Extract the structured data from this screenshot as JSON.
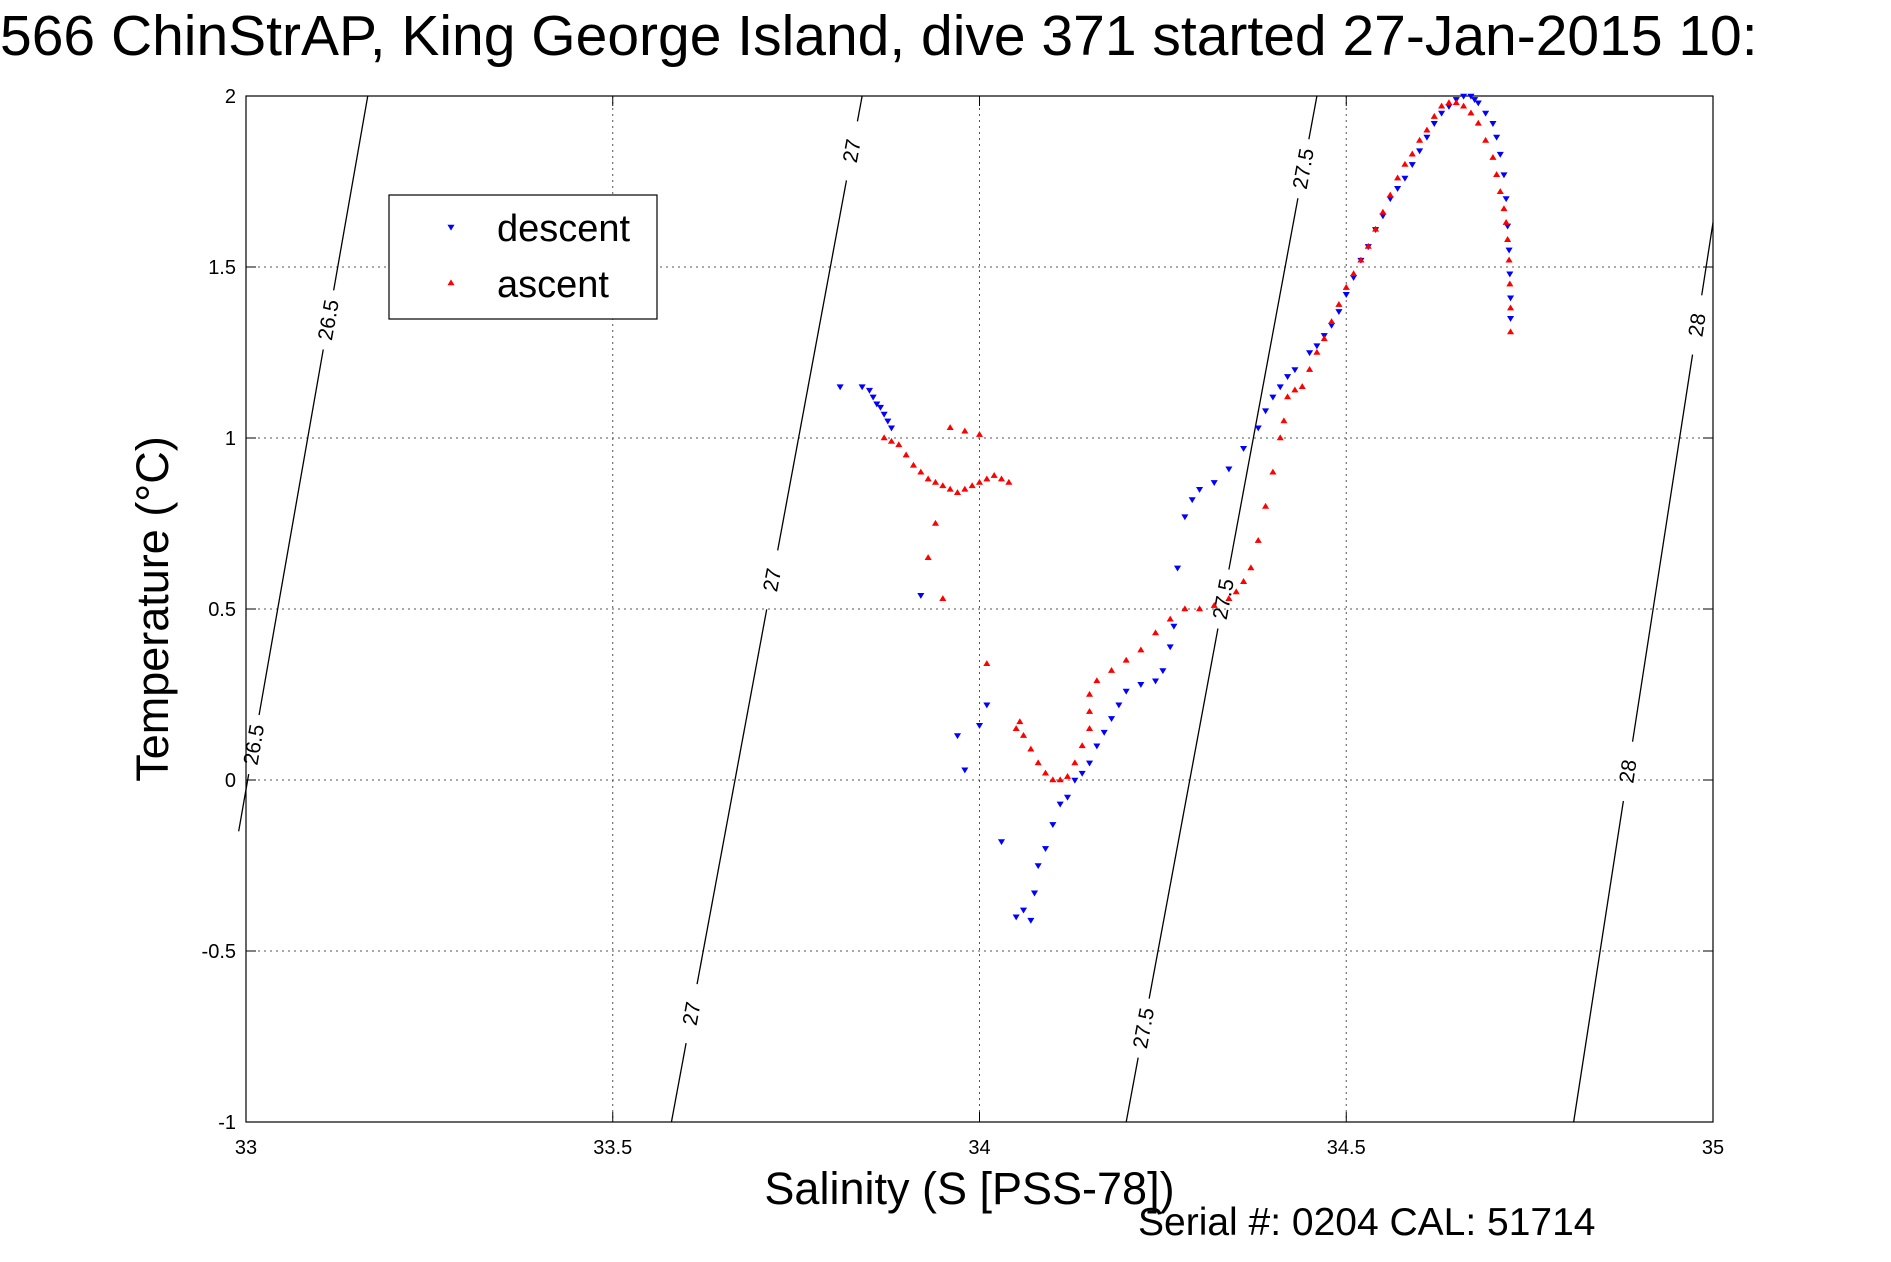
{
  "title": "566 ChinStrAP, King George Island, dive 371 started 27-Jan-2015 10:",
  "footer": "Serial #: 0204  CAL: 51714",
  "chart_data": {
    "type": "scatter",
    "xlabel": "Salinity (S [PSS-78])",
    "ylabel": "Temperature (°C)",
    "xlim": [
      33,
      35
    ],
    "ylim": [
      -1,
      2
    ],
    "xticks": [
      33,
      33.5,
      34,
      34.5,
      35
    ],
    "yticks": [
      -1,
      -0.5,
      0,
      0.5,
      1,
      1.5,
      2
    ],
    "xtick_labels": [
      "33",
      "33.5",
      "34",
      "34.5",
      "35"
    ],
    "ytick_labels": [
      "-1",
      "-0.5",
      "0",
      "0.5",
      "1",
      "1.5",
      "2"
    ],
    "grid": true,
    "legend": {
      "position": "top-left"
    },
    "isopycnals": [
      {
        "label": "26.5",
        "points": [
          [
            32.99,
            -0.15
          ],
          [
            33.166,
            2.0
          ]
        ],
        "label_at": [
          [
            33.1,
            1.35
          ],
          [
            33.02,
            0.1
          ]
        ]
      },
      {
        "label": "27",
        "points": [
          [
            33.58,
            -1.0
          ],
          [
            33.84,
            2.0
          ]
        ],
        "label_at": [
          [
            33.8,
            1.85
          ],
          [
            33.68,
            0.6
          ],
          [
            33.6,
            -0.68
          ]
        ]
      },
      {
        "label": "27.5",
        "points": [
          [
            34.2,
            -1.0
          ],
          [
            34.46,
            2.0
          ]
        ],
        "label_at": [
          [
            34.41,
            1.8
          ],
          [
            34.28,
            0.55
          ],
          [
            34.21,
            -0.72
          ]
        ]
      },
      {
        "label": "28",
        "points": [
          [
            34.81,
            -1.0
          ],
          [
            35.0,
            1.63
          ]
        ],
        "label_at": [
          [
            34.98,
            1.33
          ],
          [
            34.87,
            0.03
          ]
        ]
      }
    ],
    "series": [
      {
        "name": "descent",
        "color": "#0000ff",
        "marker": "triangle-down",
        "points": [
          [
            33.81,
            1.15
          ],
          [
            33.84,
            1.15
          ],
          [
            33.85,
            1.14
          ],
          [
            33.855,
            1.12
          ],
          [
            33.86,
            1.1
          ],
          [
            33.865,
            1.09
          ],
          [
            33.87,
            1.07
          ],
          [
            33.875,
            1.05
          ],
          [
            33.88,
            1.03
          ],
          [
            33.92,
            0.54
          ],
          [
            33.97,
            0.13
          ],
          [
            33.98,
            0.03
          ],
          [
            34.0,
            0.16
          ],
          [
            34.01,
            0.22
          ],
          [
            34.03,
            -0.18
          ],
          [
            34.05,
            -0.4
          ],
          [
            34.06,
            -0.38
          ],
          [
            34.07,
            -0.41
          ],
          [
            34.075,
            -0.33
          ],
          [
            34.08,
            -0.25
          ],
          [
            34.09,
            -0.2
          ],
          [
            34.1,
            -0.13
          ],
          [
            34.11,
            -0.07
          ],
          [
            34.12,
            -0.05
          ],
          [
            34.13,
            0.0
          ],
          [
            34.14,
            0.02
          ],
          [
            34.15,
            0.05
          ],
          [
            34.16,
            0.1
          ],
          [
            34.17,
            0.14
          ],
          [
            34.18,
            0.18
          ],
          [
            34.19,
            0.22
          ],
          [
            34.2,
            0.26
          ],
          [
            34.22,
            0.28
          ],
          [
            34.24,
            0.29
          ],
          [
            34.25,
            0.32
          ],
          [
            34.26,
            0.39
          ],
          [
            34.265,
            0.45
          ],
          [
            34.27,
            0.62
          ],
          [
            34.28,
            0.77
          ],
          [
            34.29,
            0.82
          ],
          [
            34.3,
            0.85
          ],
          [
            34.32,
            0.87
          ],
          [
            34.34,
            0.91
          ],
          [
            34.36,
            0.97
          ],
          [
            34.38,
            1.03
          ],
          [
            34.39,
            1.08
          ],
          [
            34.4,
            1.12
          ],
          [
            34.41,
            1.15
          ],
          [
            34.42,
            1.18
          ],
          [
            34.43,
            1.2
          ],
          [
            34.45,
            1.25
          ],
          [
            34.46,
            1.27
          ],
          [
            34.47,
            1.3
          ],
          [
            34.48,
            1.33
          ],
          [
            34.49,
            1.37
          ],
          [
            34.5,
            1.42
          ],
          [
            34.51,
            1.47
          ],
          [
            34.52,
            1.52
          ],
          [
            34.53,
            1.56
          ],
          [
            34.54,
            1.61
          ],
          [
            34.55,
            1.65
          ],
          [
            34.56,
            1.7
          ],
          [
            34.57,
            1.73
          ],
          [
            34.58,
            1.76
          ],
          [
            34.59,
            1.8
          ],
          [
            34.6,
            1.84
          ],
          [
            34.61,
            1.88
          ],
          [
            34.62,
            1.92
          ],
          [
            34.63,
            1.95
          ],
          [
            34.64,
            1.97
          ],
          [
            34.65,
            1.99
          ],
          [
            34.66,
            2.0
          ],
          [
            34.67,
            2.0
          ],
          [
            34.675,
            1.99
          ],
          [
            34.68,
            1.98
          ],
          [
            34.69,
            1.95
          ],
          [
            34.7,
            1.92
          ],
          [
            34.705,
            1.88
          ],
          [
            34.71,
            1.83
          ],
          [
            34.715,
            1.77
          ],
          [
            34.718,
            1.7
          ],
          [
            34.72,
            1.62
          ],
          [
            34.722,
            1.55
          ],
          [
            34.723,
            1.48
          ],
          [
            34.724,
            1.41
          ],
          [
            34.724,
            1.35
          ]
        ]
      },
      {
        "name": "ascent",
        "color": "#ff0000",
        "marker": "triangle-up",
        "points": [
          [
            34.724,
            1.31
          ],
          [
            34.724,
            1.38
          ],
          [
            34.723,
            1.45
          ],
          [
            34.722,
            1.52
          ],
          [
            34.72,
            1.58
          ],
          [
            34.718,
            1.63
          ],
          [
            34.715,
            1.67
          ],
          [
            34.71,
            1.72
          ],
          [
            34.705,
            1.77
          ],
          [
            34.7,
            1.82
          ],
          [
            34.69,
            1.87
          ],
          [
            34.68,
            1.92
          ],
          [
            34.67,
            1.95
          ],
          [
            34.66,
            1.97
          ],
          [
            34.65,
            1.98
          ],
          [
            34.64,
            1.98
          ],
          [
            34.63,
            1.97
          ],
          [
            34.62,
            1.94
          ],
          [
            34.61,
            1.9
          ],
          [
            34.6,
            1.87
          ],
          [
            34.59,
            1.83
          ],
          [
            34.58,
            1.8
          ],
          [
            34.57,
            1.76
          ],
          [
            34.56,
            1.71
          ],
          [
            34.55,
            1.66
          ],
          [
            34.54,
            1.61
          ],
          [
            34.53,
            1.56
          ],
          [
            34.52,
            1.52
          ],
          [
            34.51,
            1.48
          ],
          [
            34.5,
            1.44
          ],
          [
            34.49,
            1.39
          ],
          [
            34.48,
            1.34
          ],
          [
            34.47,
            1.29
          ],
          [
            34.46,
            1.25
          ],
          [
            34.45,
            1.2
          ],
          [
            34.44,
            1.15
          ],
          [
            34.43,
            1.14
          ],
          [
            34.42,
            1.12
          ],
          [
            34.415,
            1.05
          ],
          [
            34.41,
            1.0
          ],
          [
            34.4,
            0.9
          ],
          [
            34.39,
            0.8
          ],
          [
            34.38,
            0.7
          ],
          [
            34.37,
            0.62
          ],
          [
            34.36,
            0.58
          ],
          [
            34.35,
            0.55
          ],
          [
            34.34,
            0.53
          ],
          [
            34.32,
            0.51
          ],
          [
            34.3,
            0.5
          ],
          [
            34.28,
            0.5
          ],
          [
            34.26,
            0.47
          ],
          [
            34.24,
            0.43
          ],
          [
            34.22,
            0.38
          ],
          [
            34.2,
            0.35
          ],
          [
            34.18,
            0.32
          ],
          [
            34.16,
            0.29
          ],
          [
            34.15,
            0.25
          ],
          [
            34.15,
            0.2
          ],
          [
            34.15,
            0.15
          ],
          [
            34.14,
            0.1
          ],
          [
            34.13,
            0.05
          ],
          [
            34.12,
            0.01
          ],
          [
            34.11,
            0.0
          ],
          [
            34.1,
            0.0
          ],
          [
            34.09,
            0.02
          ],
          [
            34.08,
            0.05
          ],
          [
            34.07,
            0.09
          ],
          [
            34.06,
            0.13
          ],
          [
            34.055,
            0.17
          ],
          [
            34.05,
            0.15
          ],
          [
            34.01,
            0.34
          ],
          [
            34.04,
            0.87
          ],
          [
            34.03,
            0.88
          ],
          [
            34.02,
            0.89
          ],
          [
            34.01,
            0.88
          ],
          [
            34.0,
            0.87
          ],
          [
            33.99,
            0.86
          ],
          [
            33.98,
            0.85
          ],
          [
            33.97,
            0.84
          ],
          [
            33.96,
            0.85
          ],
          [
            33.95,
            0.86
          ],
          [
            33.94,
            0.87
          ],
          [
            33.93,
            0.88
          ],
          [
            33.92,
            0.9
          ],
          [
            33.91,
            0.92
          ],
          [
            33.9,
            0.95
          ],
          [
            33.89,
            0.98
          ],
          [
            33.88,
            0.99
          ],
          [
            33.87,
            1.0
          ],
          [
            33.96,
            1.03
          ],
          [
            33.98,
            1.02
          ],
          [
            34.0,
            1.01
          ],
          [
            33.93,
            0.65
          ],
          [
            33.94,
            0.75
          ],
          [
            33.95,
            0.53
          ]
        ]
      }
    ]
  }
}
